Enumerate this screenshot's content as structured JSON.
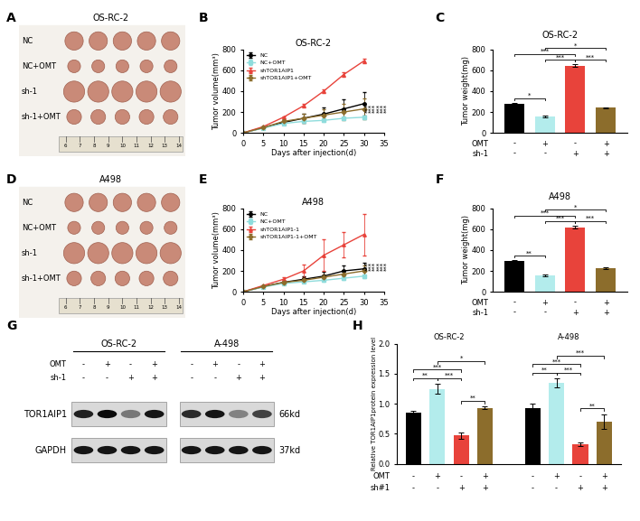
{
  "photos": [
    {
      "panel": "A",
      "title": "OS-RC-2",
      "rows": [
        "NC",
        "NC+OMT",
        "sh-1",
        "sh-1+OMT"
      ],
      "tumors_per_row": 5,
      "ruler": [
        6,
        7,
        8,
        9,
        10,
        11,
        12,
        13,
        14
      ]
    },
    {
      "panel": "D",
      "title": "A498",
      "rows": [
        "NC",
        "NC+OMT",
        "sh-1",
        "sh-1+OMT"
      ],
      "tumors_per_row": 5,
      "ruler": [
        6,
        7,
        8,
        9,
        10,
        11,
        12,
        13,
        14
      ]
    }
  ],
  "blot": {
    "panel": "G",
    "groups": [
      "OS-RC-2",
      "A-498"
    ],
    "conditions": [
      {
        "name": "OMT",
        "marks": [
          "-",
          "+",
          "-",
          "+",
          "-",
          "+",
          "-",
          "+"
        ]
      },
      {
        "name": "sh-1",
        "marks": [
          "-",
          "-",
          "+",
          "+",
          "-",
          "-",
          "+",
          "+"
        ]
      }
    ],
    "bands": [
      {
        "name": "TOR1AIP1",
        "size": "66kd",
        "intensity": [
          0.85,
          0.95,
          0.45,
          0.9,
          0.8,
          0.9,
          0.4,
          0.7
        ]
      },
      {
        "name": "GAPDH",
        "size": "37kd",
        "intensity": [
          0.9,
          0.9,
          0.9,
          0.9,
          0.9,
          0.9,
          0.9,
          0.9
        ]
      }
    ]
  },
  "chart_data": [
    {
      "panel": "B",
      "type": "line",
      "title": "OS-RC-2",
      "x_label": "Days after injection(d)",
      "y_label": "Tumor volume(mm³)",
      "x": [
        0,
        5,
        10,
        15,
        20,
        25,
        30
      ],
      "xlim": [
        0,
        35
      ],
      "xticks": [
        0,
        5,
        10,
        15,
        20,
        25,
        30,
        35
      ],
      "ylim": [
        0,
        800
      ],
      "yticks": [
        0,
        200,
        400,
        600,
        800
      ],
      "legend": "upper left",
      "series": [
        {
          "name": "NC",
          "color": "#000000",
          "marker": "circle",
          "values": [
            0,
            50,
            100,
            140,
            180,
            230,
            280
          ],
          "errors": [
            0,
            5,
            15,
            40,
            60,
            90,
            110
          ]
        },
        {
          "name": "NC+OMT",
          "color": "#8fdcdc",
          "marker": "square",
          "values": [
            0,
            45,
            90,
            110,
            120,
            140,
            150
          ],
          "errors": [
            0,
            3,
            8,
            10,
            12,
            12,
            15
          ]
        },
        {
          "name": "shTOR1AIP1",
          "color": "#e8433b",
          "marker": "triangle",
          "values": [
            0,
            60,
            150,
            260,
            400,
            560,
            690
          ],
          "errors": [
            0,
            5,
            10,
            20,
            20,
            20,
            20
          ]
        },
        {
          "name": "shTOR1AIP1+OMT",
          "color": "#8c6d2c",
          "marker": "diamond",
          "values": [
            0,
            50,
            110,
            140,
            170,
            200,
            230
          ],
          "errors": [
            0,
            5,
            25,
            40,
            60,
            80,
            100
          ]
        }
      ],
      "annotations": [
        "***",
        "***",
        "***",
        "***",
        "***",
        "***"
      ]
    },
    {
      "panel": "C",
      "type": "bar",
      "title": "OS-RC-2",
      "y_label": "Tumor weight(mg)",
      "categories": [
        null,
        null,
        null,
        null
      ],
      "values": [
        280,
        160,
        645,
        240
      ],
      "errors": [
        10,
        8,
        15,
        8
      ],
      "colors": [
        "#000000",
        "#b3ecec",
        "#e8433b",
        "#8c6d2c"
      ],
      "ylim": [
        0,
        800
      ],
      "yticks": [
        0,
        200,
        400,
        600,
        800
      ],
      "tick_rows": [
        {
          "name": "OMT",
          "marks": [
            "-",
            "+",
            "-",
            "+"
          ]
        },
        {
          "name": "sh-1",
          "marks": [
            "-",
            "-",
            "+",
            "+"
          ]
        }
      ],
      "comparisons": [
        {
          "pair": [
            0,
            1
          ],
          "label": "*"
        },
        {
          "pair": [
            1,
            2
          ],
          "label": "***"
        },
        {
          "pair": [
            2,
            3
          ],
          "label": "***"
        },
        {
          "pair": [
            0,
            2
          ],
          "label": "***"
        },
        {
          "pair": [
            1,
            3
          ],
          "label": "*"
        }
      ]
    },
    {
      "panel": "E",
      "type": "line",
      "title": "A498",
      "x_label": "Days after injection(d)",
      "y_label": "Tumor volume(mm³)",
      "x": [
        0,
        5,
        10,
        15,
        20,
        25,
        30
      ],
      "xlim": [
        0,
        35
      ],
      "xticks": [
        0,
        5,
        10,
        15,
        20,
        25,
        30,
        35
      ],
      "ylim": [
        0,
        800
      ],
      "yticks": [
        0,
        200,
        400,
        600,
        800
      ],
      "legend": "upper left",
      "series": [
        {
          "name": "NC",
          "color": "#000000",
          "marker": "circle",
          "values": [
            0,
            50,
            90,
            120,
            150,
            200,
            220
          ],
          "errors": [
            0,
            5,
            15,
            30,
            40,
            50,
            60
          ]
        },
        {
          "name": "NC+OMT",
          "color": "#8fdcdc",
          "marker": "square",
          "values": [
            0,
            45,
            80,
            95,
            110,
            130,
            150
          ],
          "errors": [
            0,
            3,
            8,
            10,
            10,
            15,
            15
          ]
        },
        {
          "name": "shTOR1AIP1-1",
          "color": "#e8433b",
          "marker": "triangle",
          "values": [
            0,
            60,
            120,
            200,
            350,
            450,
            550
          ],
          "errors": [
            0,
            5,
            20,
            60,
            150,
            120,
            200
          ]
        },
        {
          "name": "shTOR1AIP1-1+OMT",
          "color": "#8c6d2c",
          "marker": "diamond",
          "values": [
            0,
            50,
            90,
            110,
            140,
            170,
            200
          ],
          "errors": [
            0,
            5,
            15,
            20,
            30,
            40,
            50
          ]
        }
      ],
      "annotations": [
        "***",
        "***",
        "***",
        "***",
        "***",
        "***"
      ]
    },
    {
      "panel": "F",
      "type": "bar",
      "title": "A498",
      "y_label": "Tumor weight(mg)",
      "categories": [
        null,
        null,
        null,
        null
      ],
      "values": [
        295,
        160,
        620,
        230
      ],
      "errors": [
        10,
        8,
        15,
        8
      ],
      "colors": [
        "#000000",
        "#b3ecec",
        "#e8433b",
        "#8c6d2c"
      ],
      "ylim": [
        0,
        800
      ],
      "yticks": [
        0,
        200,
        400,
        600,
        800
      ],
      "tick_rows": [
        {
          "name": "OMT",
          "marks": [
            "-",
            "+",
            "-",
            "+"
          ]
        },
        {
          "name": "sh-1",
          "marks": [
            "-",
            "-",
            "+",
            "+"
          ]
        }
      ],
      "comparisons": [
        {
          "pair": [
            0,
            1
          ],
          "label": "**"
        },
        {
          "pair": [
            1,
            2
          ],
          "label": "***"
        },
        {
          "pair": [
            2,
            3
          ],
          "label": "***"
        },
        {
          "pair": [
            0,
            2
          ],
          "label": "***"
        },
        {
          "pair": [
            1,
            3
          ],
          "label": "*"
        }
      ]
    },
    {
      "panel": "H",
      "type": "bar",
      "y_label": "Relative TOR1AIP1protein expression level",
      "categories": [
        null,
        null,
        null,
        null,
        null,
        null,
        null,
        null
      ],
      "colors": [
        "#000000",
        "#b3ecec",
        "#e8433b",
        "#8c6d2c"
      ],
      "groups": [
        {
          "name": "OS-RC-2",
          "values": [
            0.85,
            1.25,
            0.47,
            0.93
          ],
          "errors": [
            0.03,
            0.08,
            0.05,
            0.02
          ],
          "comparisons": [
            {
              "pair": [
                0,
                1
              ],
              "label": "**"
            },
            {
              "pair": [
                1,
                2
              ],
              "label": "***"
            },
            {
              "pair": [
                2,
                3
              ],
              "label": "**"
            },
            {
              "pair": [
                0,
                2
              ],
              "label": "***"
            },
            {
              "pair": [
                1,
                3
              ],
              "label": "*"
            }
          ]
        },
        {
          "name": "A-498",
          "values": [
            0.93,
            1.35,
            0.32,
            0.7
          ],
          "errors": [
            0.08,
            0.07,
            0.03,
            0.12
          ],
          "comparisons": [
            {
              "pair": [
                0,
                1
              ],
              "label": "**"
            },
            {
              "pair": [
                1,
                2
              ],
              "label": "***"
            },
            {
              "pair": [
                2,
                3
              ],
              "label": "**"
            },
            {
              "pair": [
                0,
                2
              ],
              "label": "***"
            },
            {
              "pair": [
                1,
                3
              ],
              "label": "***"
            }
          ]
        }
      ],
      "ylim": [
        0,
        2.0
      ],
      "yticks": [
        {
          "value": 0,
          "label": "0.0"
        },
        {
          "value": 0.5,
          "label": "0.5"
        },
        {
          "value": 1.0,
          "label": "1.0"
        },
        {
          "value": 1.5,
          "label": "1.5"
        },
        {
          "value": 2.0,
          "label": "2.0"
        }
      ],
      "tick_rows": [
        {
          "name": "OMT",
          "marks": [
            "-",
            "+",
            "-",
            "+",
            "-",
            "+",
            "-",
            "+"
          ]
        },
        {
          "name": "sh#1",
          "marks": [
            "-",
            "-",
            "+",
            "+",
            "-",
            "-",
            "+",
            "+"
          ]
        }
      ]
    }
  ]
}
